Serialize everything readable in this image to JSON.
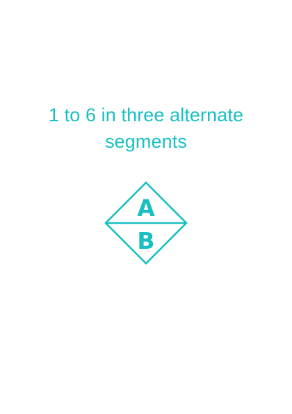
{
  "title": {
    "line1": "1 to 6 in three alternate",
    "line2": "segments"
  },
  "diamond": {
    "top_letter": "A",
    "bottom_letter": "B",
    "color": "#19bfc2"
  }
}
